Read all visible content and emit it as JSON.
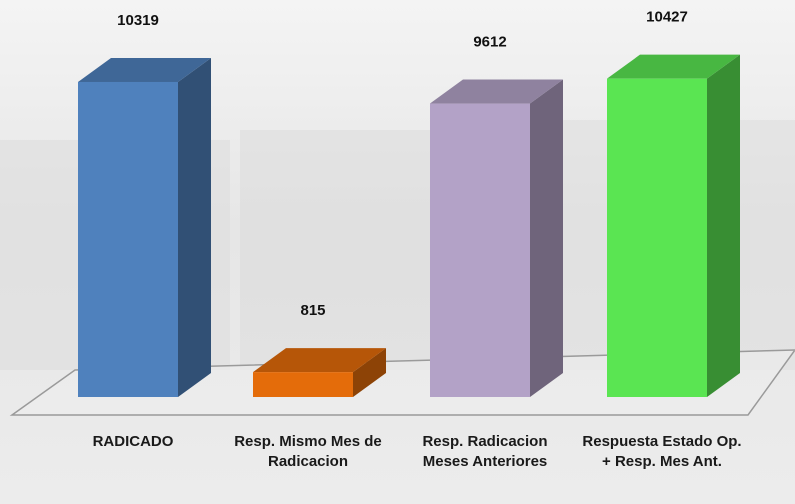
{
  "chart_data": {
    "type": "bar3d",
    "categories": [
      "RADICADO",
      "Resp. Mismo Mes de Radicacion",
      "Resp. Radicacion Meses Anteriores",
      "Respuesta Estado Op. + Resp. Mes Ant."
    ],
    "values": [
      10319,
      815,
      9612,
      10427
    ],
    "colors": [
      "#4f81bd",
      "#e46c0a",
      "#b3a2c7",
      "#5ae552"
    ]
  }
}
